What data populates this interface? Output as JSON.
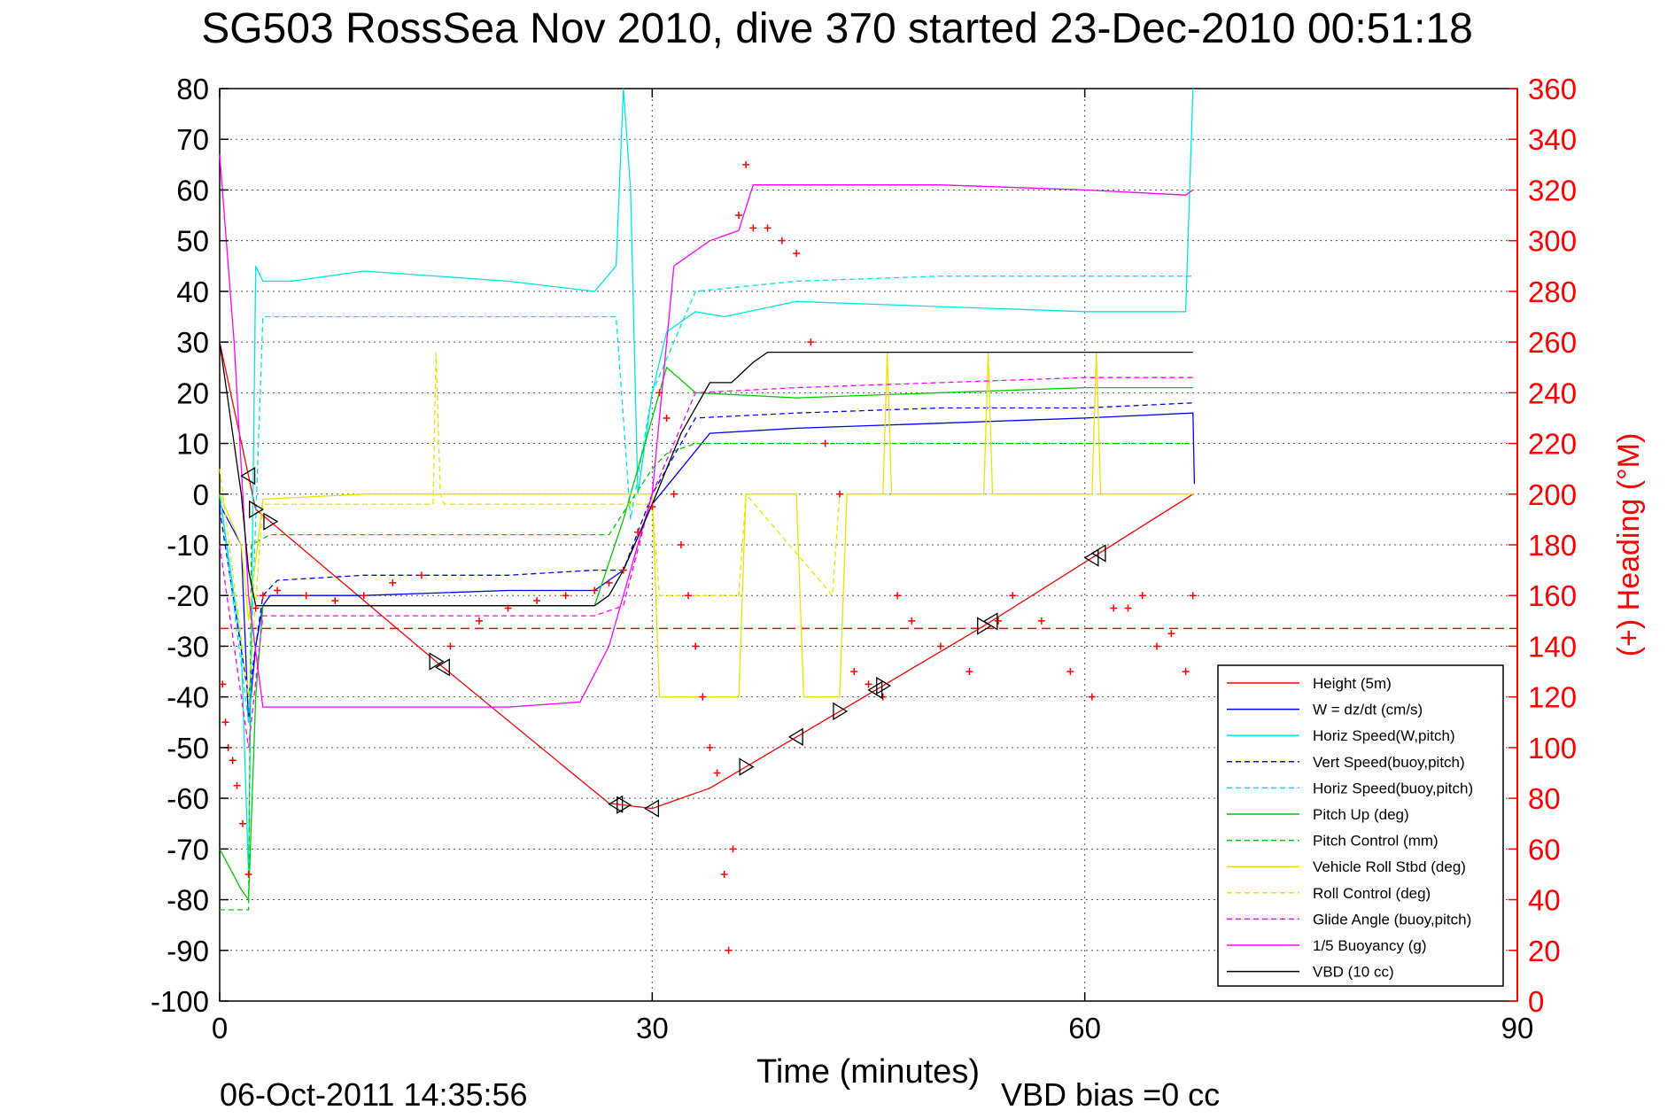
{
  "title": "SG503 RossSea Nov 2010, dive 370 started 23-Dec-2010 00:51:18",
  "footer": {
    "timestamp": "06-Oct-2011 14:35:56",
    "vbd_bias": "VBD bias =0 cc"
  },
  "colors": {
    "red": "#ff0000",
    "blue": "#0000ff",
    "cyan": "#00e5e5",
    "green": "#00cc00",
    "yellow": "#e6e600",
    "magenta": "#ff00ff",
    "black": "#000000"
  },
  "chart_data": {
    "type": "line",
    "xlabel": "Time (minutes)",
    "ylabel": "",
    "y2label": "(+) Heading (°M)",
    "xlim": [
      0,
      90
    ],
    "ylim": [
      -100,
      80
    ],
    "y2lim": [
      0,
      360
    ],
    "x_ticks": [
      "0",
      "30",
      "60",
      "90"
    ],
    "x_tick_values": [
      0,
      30,
      60,
      90
    ],
    "y_ticks": [
      "80",
      "70",
      "60",
      "50",
      "40",
      "30",
      "20",
      "10",
      "0",
      "-10",
      "-20",
      "-30",
      "-40",
      "-50",
      "-60",
      "-70",
      "-80",
      "-90",
      "-100"
    ],
    "y_tick_values": [
      80,
      70,
      60,
      50,
      40,
      30,
      20,
      10,
      0,
      -10,
      -20,
      -30,
      -40,
      -50,
      -60,
      -70,
      -80,
      -90,
      -100
    ],
    "y2_ticks": [
      "360",
      "340",
      "320",
      "300",
      "280",
      "260",
      "240",
      "220",
      "200",
      "180",
      "160",
      "140",
      "120",
      "100",
      "80",
      "60",
      "40",
      "20",
      "0"
    ],
    "y2_tick_values": [
      360,
      340,
      320,
      300,
      280,
      260,
      240,
      220,
      200,
      180,
      160,
      140,
      120,
      100,
      80,
      60,
      40,
      20,
      0
    ],
    "grid": true,
    "legend_position": "bottom-right",
    "reference_line": {
      "y": -26.5,
      "color": "#ff0000",
      "style": "dashed"
    },
    "series": [
      {
        "name": "Height (5m)",
        "color": "#ff0000",
        "dash": "",
        "x": [
          0,
          2.5,
          15,
          27,
          30,
          34,
          53,
          67.5
        ],
        "y": [
          30,
          -3,
          -33,
          -61,
          -62,
          -58,
          -26,
          0
        ]
      },
      {
        "name": "W = dz/dt (cm/s)",
        "color": "#0000ff",
        "dash": "",
        "x": [
          0,
          1.5,
          2,
          2.5,
          3,
          3.5,
          10,
          20,
          26,
          28,
          30,
          32,
          34,
          40,
          50,
          60,
          67.5,
          67.6
        ],
        "y": [
          -2,
          -10,
          -45,
          -30,
          -22,
          -20,
          -20,
          -19,
          -19,
          -15,
          -2,
          5,
          12,
          13,
          14,
          15,
          16,
          2
        ]
      },
      {
        "name": "Horiz Speed(W,pitch)",
        "color": "#00e5e5",
        "dash": "",
        "x": [
          0,
          1.5,
          2,
          2.5,
          3,
          5,
          10,
          20,
          26,
          27.5,
          28,
          28.5,
          29,
          30,
          31,
          33,
          35,
          40,
          50,
          60,
          67,
          67.5
        ],
        "y": [
          0,
          -30,
          -75,
          45,
          42,
          42,
          44,
          42,
          40,
          45,
          80,
          60,
          0,
          20,
          32,
          36,
          35,
          38,
          37,
          36,
          36,
          80
        ]
      },
      {
        "name": "Vert Speed(buoy,pitch)",
        "color": "#0000ff",
        "dash": "6,4",
        "x": [
          0,
          2,
          3,
          4,
          10,
          20,
          26,
          28,
          30,
          33,
          40,
          50,
          60,
          67.5
        ],
        "y": [
          -3,
          -40,
          -20,
          -17,
          -16,
          -16,
          -15,
          -15,
          0,
          15,
          16,
          17,
          17,
          18
        ]
      },
      {
        "name": "Horiz Speed(buoy,pitch)",
        "color": "#00e5e5",
        "dash": "6,4",
        "x": [
          0,
          2,
          3,
          10,
          20,
          26,
          27.5,
          28.5,
          30,
          33,
          40,
          50,
          60,
          67.5
        ],
        "y": [
          0,
          -45,
          35,
          35,
          35,
          35,
          35,
          -5,
          20,
          40,
          42,
          43,
          43,
          43
        ]
      },
      {
        "name": "Pitch Up (deg)",
        "color": "#00cc00",
        "dash": "",
        "x": [
          0,
          1.5,
          2,
          2.5,
          3,
          10,
          20,
          26,
          28,
          30,
          31,
          33,
          40,
          50,
          60,
          67.5
        ],
        "y": [
          -70,
          -78,
          -80,
          -40,
          -22,
          -22,
          -22,
          -22,
          -5,
          15,
          25,
          20,
          19,
          20,
          21,
          21
        ]
      },
      {
        "name": "Pitch Control (mm)",
        "color": "#00cc00",
        "dash": "6,4",
        "x": [
          0,
          2,
          2.2,
          3.5,
          20,
          27,
          30,
          31,
          33,
          40,
          50,
          60,
          67.5
        ],
        "y": [
          -82,
          -82,
          -10,
          -8,
          -8,
          -8,
          5,
          8,
          10,
          10,
          10,
          10,
          10
        ]
      },
      {
        "name": "Vehicle Roll Stbd (deg)",
        "color": "#e6e600",
        "dash": "",
        "x": [
          0,
          1.5,
          2,
          3,
          10,
          20,
          27,
          30,
          30.5,
          36,
          36.5,
          40,
          40.5,
          43,
          43.5,
          46,
          46.3,
          46.6,
          53,
          53.3,
          53.6,
          60.5,
          60.8,
          61.1,
          67.5
        ],
        "y": [
          0,
          -10,
          -25,
          -1,
          0,
          0,
          0,
          0,
          -40,
          -40,
          0,
          0,
          -40,
          -40,
          0,
          0,
          28,
          0,
          0,
          28,
          0,
          0,
          28,
          0,
          0
        ]
      },
      {
        "name": "Roll Control (deg)",
        "color": "#e6e600",
        "dash": "6,4",
        "x": [
          0,
          2,
          3,
          14.8,
          15,
          15.3,
          15.6,
          27,
          30,
          30.5,
          36,
          36.5,
          42.5,
          43,
          67.5
        ],
        "y": [
          5,
          -40,
          -2,
          -2,
          28,
          0,
          -2,
          -2,
          -2,
          -20,
          -20,
          0,
          -20,
          0,
          0
        ]
      },
      {
        "name": "Glide Angle (buoy,pitch)",
        "color": "#ff00ff",
        "dash": "6,4",
        "x": [
          0,
          2,
          3,
          10,
          20,
          26,
          28,
          30,
          33,
          40,
          50,
          60,
          67.5
        ],
        "y": [
          -10,
          -50,
          -24,
          -24,
          -24,
          -24,
          -22,
          0,
          20,
          21,
          22,
          23,
          23
        ]
      },
      {
        "name": "1/5 Buoyancy (g)",
        "color": "#ff00ff",
        "dash": "",
        "x": [
          0,
          1,
          2,
          3,
          10,
          20,
          25,
          27,
          30,
          31.5,
          34,
          36,
          37,
          40,
          50,
          60,
          67,
          67.5
        ],
        "y": [
          67,
          30,
          -20,
          -42,
          -42,
          -42,
          -41,
          -30,
          0,
          45,
          50,
          52,
          61,
          61,
          61,
          60,
          59,
          60
        ]
      },
      {
        "name": "VBD (10 cc)",
        "color": "#000000",
        "dash": "",
        "x": [
          0,
          1.5,
          2,
          2.5,
          3,
          10,
          20,
          26,
          27,
          28,
          30,
          32,
          34,
          35.5,
          37,
          38,
          50,
          60,
          67.5
        ],
        "y": [
          30,
          0,
          -15,
          -22,
          -22,
          -22,
          -22,
          -22,
          -20,
          -15,
          -2,
          12,
          22,
          22,
          26,
          28,
          28,
          28,
          28
        ]
      },
      {
        "name": "Heading (+)",
        "color": "#ff0000",
        "dash": "markers",
        "x": [
          0.2,
          0.4,
          0.6,
          0.9,
          1.2,
          1.6,
          2,
          2.5,
          3,
          4,
          6,
          8,
          10,
          12,
          14,
          16,
          18,
          20,
          22,
          24,
          26,
          27,
          28,
          29,
          30,
          30.5,
          31,
          31.5,
          32,
          32.5,
          33,
          33.5,
          34,
          34.5,
          35,
          35.3,
          35.6,
          36,
          36.5,
          37,
          38,
          39,
          40,
          41,
          42,
          43,
          44,
          45,
          46,
          47,
          48,
          50,
          52,
          54,
          55,
          57,
          59,
          60.5,
          62,
          63,
          64,
          65,
          66,
          67,
          67.5
        ],
        "y": [
          125,
          110,
          100,
          95,
          85,
          70,
          50,
          155,
          160,
          162,
          160,
          158,
          160,
          165,
          168,
          140,
          150,
          155,
          158,
          160,
          162,
          165,
          170,
          185,
          195,
          240,
          230,
          200,
          180,
          160,
          140,
          120,
          100,
          90,
          50,
          20,
          60,
          310,
          330,
          305,
          305,
          300,
          295,
          260,
          220,
          200,
          130,
          125,
          120,
          160,
          150,
          140,
          130,
          150,
          160,
          150,
          130,
          120,
          155,
          155,
          160,
          140,
          145,
          130,
          160
        ]
      }
    ],
    "markers": {
      "right_triangles_x": [
        2.5,
        3.5,
        15,
        28,
        36.5,
        43,
        46,
        53
      ],
      "left_triangles_x": [
        2,
        15.5,
        27.5,
        30,
        40,
        45.5,
        53.5,
        60.5,
        61
      ]
    }
  }
}
